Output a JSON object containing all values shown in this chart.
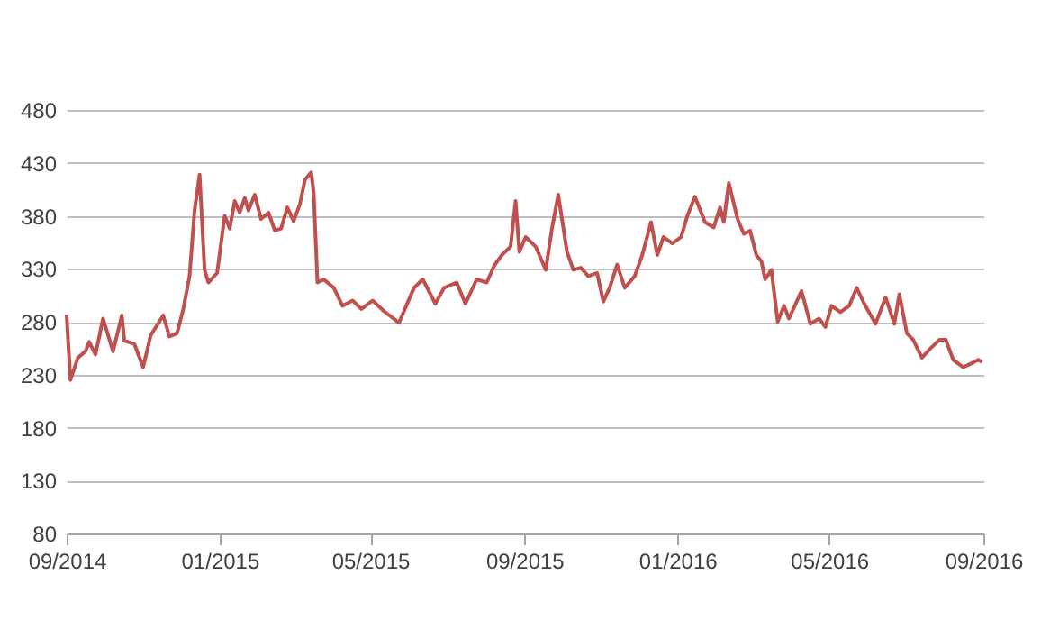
{
  "chart_data": {
    "type": "line",
    "grid": "y",
    "xlim": [
      "2014-09-01",
      "2016-09-01"
    ],
    "xticks": [
      {
        "value": "2014-09-01",
        "label": "09/2014"
      },
      {
        "value": "2015-01-01",
        "label": "01/2015"
      },
      {
        "value": "2015-05-01",
        "label": "05/2015"
      },
      {
        "value": "2015-09-01",
        "label": "09/2015"
      },
      {
        "value": "2016-01-01",
        "label": "01/2016"
      },
      {
        "value": "2016-05-01",
        "label": "05/2016"
      },
      {
        "value": "2016-09-01",
        "label": "09/2016"
      }
    ],
    "ylim": [
      80,
      480
    ],
    "yticks": [
      80,
      130,
      180,
      230,
      280,
      330,
      380,
      430,
      480
    ],
    "x": [
      "2014-09-01",
      "2014-09-04",
      "2014-09-10",
      "2014-09-16",
      "2014-09-19",
      "2014-09-24",
      "2014-09-30",
      "2014-10-08",
      "2014-10-15",
      "2014-10-17",
      "2014-10-25",
      "2014-11-01",
      "2014-11-07",
      "2014-11-17",
      "2014-11-22",
      "2014-11-28",
      "2014-12-03",
      "2014-12-08",
      "2014-12-12",
      "2014-12-16",
      "2014-12-20",
      "2014-12-23",
      "2014-12-30",
      "2015-01-05",
      "2015-01-09",
      "2015-01-13",
      "2015-01-17",
      "2015-01-21",
      "2015-01-24",
      "2015-01-29",
      "2015-02-03",
      "2015-02-09",
      "2015-02-14",
      "2015-02-19",
      "2015-02-24",
      "2015-03-01",
      "2015-03-06",
      "2015-03-10",
      "2015-03-15",
      "2015-03-17",
      "2015-03-20",
      "2015-03-25",
      "2015-04-02",
      "2015-04-09",
      "2015-04-17",
      "2015-04-24",
      "2015-05-03",
      "2015-05-12",
      "2015-05-24",
      "2015-06-05",
      "2015-06-12",
      "2015-06-22",
      "2015-06-29",
      "2015-07-09",
      "2015-07-16",
      "2015-07-25",
      "2015-08-02",
      "2015-08-08",
      "2015-08-14",
      "2015-08-21",
      "2015-08-25",
      "2015-08-28",
      "2015-09-02",
      "2015-09-10",
      "2015-09-18",
      "2015-09-23",
      "2015-09-28",
      "2015-10-05",
      "2015-10-10",
      "2015-10-16",
      "2015-10-22",
      "2015-10-29",
      "2015-11-03",
      "2015-11-08",
      "2015-11-14",
      "2015-11-20",
      "2015-11-28",
      "2015-12-04",
      "2015-12-11",
      "2015-12-16",
      "2015-12-21",
      "2015-12-28",
      "2016-01-04",
      "2016-01-09",
      "2016-01-15",
      "2016-01-23",
      "2016-01-30",
      "2016-02-04",
      "2016-02-07",
      "2016-02-11",
      "2016-02-18",
      "2016-02-23",
      "2016-02-28",
      "2016-03-04",
      "2016-03-08",
      "2016-03-11",
      "2016-03-16",
      "2016-03-21",
      "2016-03-26",
      "2016-03-30",
      "2016-04-09",
      "2016-04-16",
      "2016-04-23",
      "2016-04-28",
      "2016-05-03",
      "2016-05-10",
      "2016-05-17",
      "2016-05-23",
      "2016-05-29",
      "2016-06-07",
      "2016-06-15",
      "2016-06-22",
      "2016-06-26",
      "2016-07-02",
      "2016-07-07",
      "2016-07-14",
      "2016-07-21",
      "2016-07-28",
      "2016-08-02",
      "2016-08-08",
      "2016-08-16",
      "2016-08-23",
      "2016-08-28",
      "2016-08-31"
    ],
    "series": [
      {
        "color": "#c0504d",
        "values": [
          286,
          225,
          246,
          252,
          261,
          249,
          283,
          252,
          286,
          262,
          259,
          237,
          267,
          286,
          266,
          269,
          292,
          323,
          385,
          419,
          329,
          317,
          326,
          380,
          368,
          394,
          383,
          397,
          385,
          400,
          377,
          383,
          366,
          368,
          388,
          375,
          391,
          414,
          421,
          402,
          317,
          320,
          312,
          295,
          300,
          292,
          300,
          290,
          279,
          312,
          320,
          297,
          312,
          317,
          297,
          320,
          317,
          333,
          343,
          351,
          394,
          346,
          360,
          351,
          329,
          368,
          400,
          346,
          329,
          331,
          323,
          326,
          299,
          312,
          334,
          312,
          323,
          343,
          374,
          343,
          360,
          354,
          360,
          380,
          398,
          374,
          369,
          388,
          374,
          411,
          377,
          363,
          366,
          343,
          337,
          320,
          329,
          280,
          295,
          283,
          309,
          278,
          283,
          275,
          295,
          289,
          295,
          312,
          297,
          278,
          303,
          278,
          306,
          269,
          263,
          246,
          255,
          263,
          263,
          244,
          237,
          241,
          244,
          242
        ]
      }
    ]
  }
}
